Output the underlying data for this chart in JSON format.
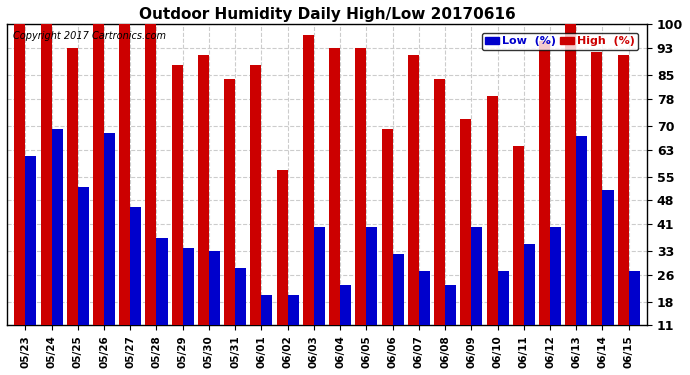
{
  "title": "Outdoor Humidity Daily High/Low 20170616",
  "copyright": "Copyright 2017 Cartronics.com",
  "dates": [
    "05/23",
    "05/24",
    "05/25",
    "05/26",
    "05/27",
    "05/28",
    "05/29",
    "05/30",
    "05/31",
    "06/01",
    "06/02",
    "06/03",
    "06/04",
    "06/05",
    "06/06",
    "06/07",
    "06/08",
    "06/09",
    "06/10",
    "06/11",
    "06/12",
    "06/13",
    "06/14",
    "06/15"
  ],
  "high": [
    100,
    100,
    93,
    100,
    100,
    100,
    88,
    91,
    84,
    88,
    57,
    97,
    93,
    93,
    69,
    91,
    84,
    72,
    79,
    64,
    95,
    100,
    92,
    91
  ],
  "low": [
    61,
    69,
    52,
    68,
    46,
    37,
    34,
    33,
    28,
    20,
    20,
    40,
    23,
    40,
    32,
    27,
    23,
    40,
    27,
    35,
    40,
    67,
    51,
    27
  ],
  "ylim": [
    11,
    100
  ],
  "yticks": [
    11,
    18,
    26,
    33,
    41,
    48,
    55,
    63,
    70,
    78,
    85,
    93,
    100
  ],
  "high_color": "#cc0000",
  "low_color": "#0000cc",
  "bg_color": "#ffffff",
  "grid_color": "#cccccc",
  "legend_low_label": "Low  (%)",
  "legend_high_label": "High  (%)",
  "bar_width": 0.42
}
